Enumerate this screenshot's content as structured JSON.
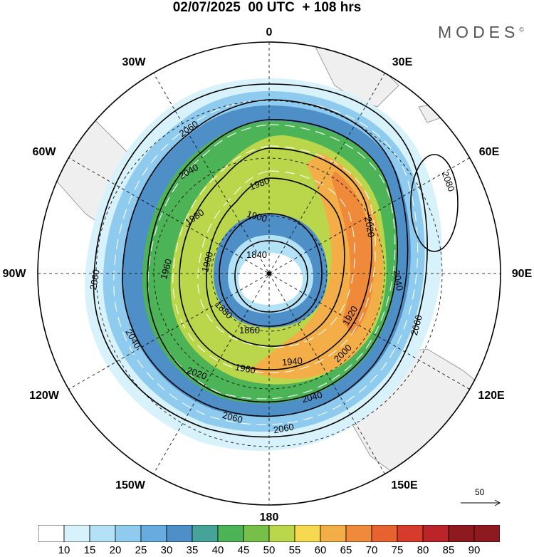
{
  "title": "02/07/2025  00 UTC  + 108 hrs",
  "brand": "MODES",
  "brand_mark": "©",
  "longitudes": [
    "0",
    "30E",
    "60E",
    "90E",
    "120E",
    "150E",
    "180",
    "150W",
    "120W",
    "90W",
    "60W",
    "30W"
  ],
  "contour_labels": [
    "2060",
    "2040",
    "1980",
    "1980",
    "1900",
    "2020",
    "1840",
    "1960",
    "1900",
    "2040",
    "1880",
    "1860",
    "1920",
    "1960",
    "1940",
    "2000",
    "2040",
    "2020",
    "2060",
    "2060",
    "2060",
    "2040",
    "2060",
    "2080"
  ],
  "vector_scale": {
    "value": "50",
    "icon": "arrow-right-icon"
  },
  "colorbar": {
    "ticks": [
      "10",
      "15",
      "20",
      "25",
      "30",
      "35",
      "40",
      "45",
      "50",
      "55",
      "60",
      "65",
      "70",
      "75",
      "80",
      "85",
      "90"
    ],
    "colors": [
      "#ffffff",
      "#d8f2fb",
      "#b3e1f5",
      "#8fcbee",
      "#66acdf",
      "#4e8fc8",
      "#45a39a",
      "#4db357",
      "#76c04a",
      "#bad64a",
      "#f6d94e",
      "#f4ae47",
      "#ef8a3a",
      "#e8622f",
      "#d63b2c",
      "#bb2429",
      "#8e1a20"
    ]
  }
}
